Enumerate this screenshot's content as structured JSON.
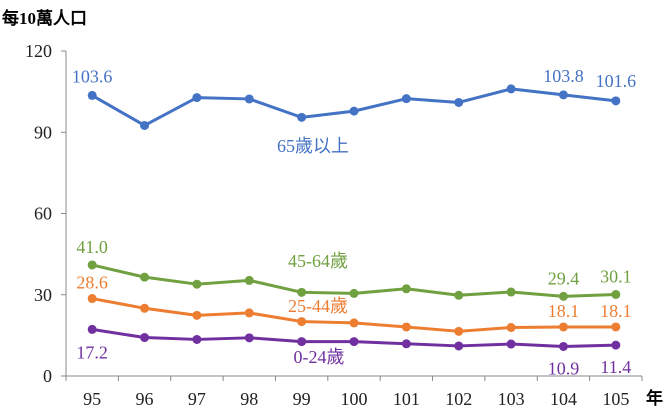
{
  "chart_data": {
    "type": "line",
    "ylabel": "每10萬人口",
    "xunit": "年",
    "ylim": [
      0,
      120
    ],
    "yticks": [
      0,
      30,
      60,
      90,
      120
    ],
    "categories": [
      "95",
      "96",
      "97",
      "98",
      "99",
      "100",
      "101",
      "102",
      "103",
      "104",
      "105"
    ],
    "grid": false,
    "series": [
      {
        "name": "65歲以上",
        "color": "#4472C4",
        "values": [
          103.6,
          92.5,
          102.8,
          102.3,
          95.5,
          97.8,
          102.4,
          101.0,
          106.0,
          103.8,
          101.6
        ],
        "labels": [
          {
            "index": 0,
            "text": "103.6"
          },
          {
            "index": 9,
            "text": "103.8"
          },
          {
            "index": 10,
            "text": "101.6"
          }
        ]
      },
      {
        "name": "45-64歲",
        "color": "#70A040",
        "values": [
          41.0,
          36.5,
          33.9,
          35.3,
          30.9,
          30.5,
          32.2,
          29.8,
          31.0,
          29.4,
          30.1
        ],
        "labels": [
          {
            "index": 0,
            "text": "41.0"
          },
          {
            "index": 9,
            "text": "29.4"
          },
          {
            "index": 10,
            "text": "30.1"
          }
        ]
      },
      {
        "name": "25-44歲",
        "color": "#ED7D31",
        "values": [
          28.6,
          25.0,
          22.4,
          23.3,
          20.1,
          19.6,
          18.1,
          16.5,
          17.9,
          18.1,
          18.1
        ],
        "labels": [
          {
            "index": 0,
            "text": "28.6"
          },
          {
            "index": 9,
            "text": "18.1"
          },
          {
            "index": 10,
            "text": "18.1"
          }
        ]
      },
      {
        "name": "0-24歲",
        "color": "#7030A0",
        "values": [
          17.2,
          14.2,
          13.5,
          14.1,
          12.7,
          12.7,
          11.9,
          11.1,
          11.8,
          10.9,
          11.4
        ],
        "labels": [
          {
            "index": 0,
            "text": "17.2"
          },
          {
            "index": 9,
            "text": "10.9"
          },
          {
            "index": 10,
            "text": "11.4"
          }
        ]
      }
    ]
  }
}
